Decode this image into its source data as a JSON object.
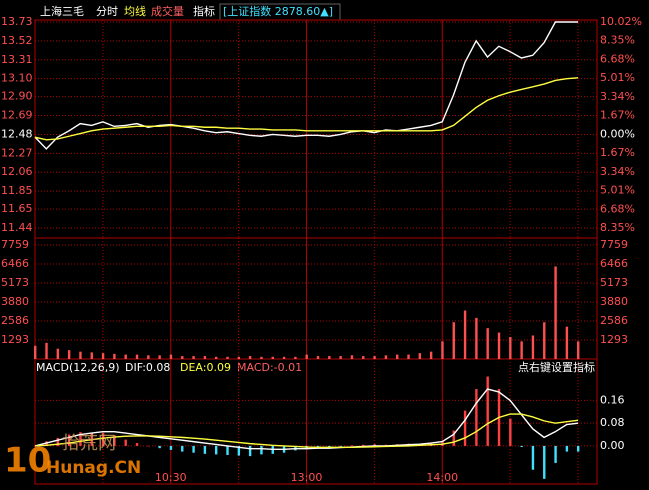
{
  "chart_data": [
    {
      "type": "line",
      "title": "上海三毛",
      "tabs": [
        "成交量",
        "指标"
      ],
      "index_label": "[上证指数 2878.60▲]",
      "ylim": [
        11.44,
        13.73
      ],
      "yticks": [
        13.73,
        13.52,
        13.31,
        {
          "value": 13.1,
          "label": "13.10"
        },
        {
          "value": 12.9,
          "label": "12.90"
        },
        12.69,
        12.48,
        12.27,
        12.06,
        11.85,
        11.65,
        11.44
      ],
      "y2lim": [
        -8.35,
        10.02
      ],
      "y2ticks": [
        {
          "value": 10.02,
          "label": "10.02%"
        },
        {
          "value": 8.35,
          "label": "8.35%"
        },
        {
          "value": 6.68,
          "label": "6.68%"
        },
        {
          "value": 5.01,
          "label": "5.01%"
        },
        {
          "value": 3.34,
          "label": "3.34%"
        },
        {
          "value": 1.67,
          "label": "1.67%"
        },
        {
          "value": 0,
          "label": "0.00%"
        },
        {
          "value": -1.67,
          "label": "1.67%"
        },
        {
          "value": -3.34,
          "label": "3.34%"
        },
        {
          "value": -5.01,
          "label": "5.01%"
        },
        {
          "value": -6.68,
          "label": "6.68%"
        },
        {
          "value": -8.35,
          "label": "8.35%"
        }
      ],
      "grid": true,
      "series": [
        {
          "name": "分时",
          "color": "#ffffff",
          "values": [
            12.45,
            12.32,
            12.45,
            12.52,
            12.6,
            12.58,
            12.62,
            12.57,
            12.58,
            12.6,
            12.56,
            12.58,
            12.59,
            12.57,
            12.55,
            12.52,
            12.5,
            12.51,
            12.49,
            12.47,
            12.46,
            12.48,
            12.47,
            12.46,
            12.47,
            12.47,
            12.46,
            12.48,
            12.51,
            12.52,
            12.5,
            12.53,
            12.52,
            12.54,
            12.56,
            12.58,
            12.62,
            12.92,
            13.28,
            13.52,
            13.34,
            13.46,
            13.4,
            13.33,
            13.36,
            13.5,
            13.73,
            13.73,
            13.73
          ]
        },
        {
          "name": "均线",
          "color": "#ffff40",
          "values": [
            12.45,
            12.42,
            12.43,
            12.46,
            12.49,
            12.52,
            12.54,
            12.55,
            12.56,
            12.57,
            12.57,
            12.57,
            12.58,
            12.57,
            12.57,
            12.56,
            12.56,
            12.55,
            12.55,
            12.54,
            12.54,
            12.53,
            12.53,
            12.53,
            12.52,
            12.52,
            12.52,
            12.52,
            12.52,
            12.52,
            12.52,
            12.52,
            12.52,
            12.52,
            12.52,
            12.52,
            12.53,
            12.58,
            12.68,
            12.78,
            12.86,
            12.91,
            12.95,
            12.98,
            13.01,
            13.04,
            13.08,
            13.1,
            13.11
          ]
        }
      ]
    },
    {
      "type": "bar",
      "ylim": [
        0,
        7759
      ],
      "yticks": [
        7759,
        6466,
        5173,
        3880,
        2586,
        1293
      ],
      "color": "#ff5050",
      "values": [
        900,
        1100,
        700,
        600,
        500,
        450,
        400,
        350,
        300,
        300,
        250,
        250,
        300,
        200,
        200,
        200,
        150,
        150,
        150,
        200,
        150,
        150,
        150,
        150,
        300,
        200,
        200,
        200,
        250,
        200,
        200,
        250,
        300,
        300,
        400,
        500,
        1200,
        2500,
        3300,
        2800,
        2100,
        1800,
        1500,
        1200,
        1600,
        2500,
        6300,
        2200,
        1200
      ]
    },
    {
      "type": "macd",
      "title": "MACD(12,26,9)",
      "readouts": [
        "DIF:0.08",
        "DEA:0.09",
        "MACD:-0.01"
      ],
      "hint": "点右键设置指标",
      "categories": [
        null,
        null,
        null,
        null,
        null,
        null,
        null,
        null,
        null,
        null,
        null,
        null,
        "10:30",
        null,
        null,
        null,
        null,
        null,
        null,
        null,
        null,
        null,
        null,
        null,
        "13:00",
        null,
        null,
        null,
        null,
        null,
        null,
        null,
        null,
        null,
        null,
        null,
        "14:00",
        null,
        null,
        null,
        null,
        null,
        null,
        null,
        null,
        null,
        null,
        null,
        null
      ],
      "ylim": [
        -0.12,
        0.26
      ],
      "yticks": [
        0.16,
        0.08,
        {
          "value": 0,
          "label": "0.00"
        }
      ],
      "series": [
        {
          "type": "bar",
          "color": "#ff4040",
          "negative_color": "#40e0ff",
          "values": [
            0,
            0.016,
            0.028,
            0.04,
            0.048,
            0.046,
            0.046,
            0.038,
            0.022,
            0.01,
            0,
            -0.008,
            -0.014,
            -0.02,
            -0.024,
            -0.028,
            -0.03,
            -0.032,
            -0.034,
            -0.036,
            -0.03,
            -0.028,
            -0.024,
            -0.016,
            -0.012,
            -0.006,
            -0.006,
            -0.002,
            0.002,
            0.004,
            0.006,
            0.004,
            0.006,
            0.008,
            0.008,
            0.012,
            0.018,
            0.054,
            0.124,
            0.2,
            0.244,
            0.2,
            0.096,
            -0.004,
            -0.084,
            -0.116,
            -0.06,
            -0.02,
            -0.02
          ]
        },
        {
          "type": "line",
          "color": "#ffffff",
          "values": [
            0,
            0.01,
            0.02,
            0.03,
            0.04,
            0.045,
            0.05,
            0.05,
            0.045,
            0.04,
            0.035,
            0.03,
            0.025,
            0.02,
            0.015,
            0.01,
            0.005,
            0,
            -0.005,
            -0.01,
            -0.01,
            -0.012,
            -0.012,
            -0.01,
            -0.01,
            -0.008,
            -0.008,
            -0.006,
            -0.004,
            -0.002,
            0,
            0,
            0.002,
            0.004,
            0.006,
            0.01,
            0.015,
            0.04,
            0.09,
            0.15,
            0.2,
            0.19,
            0.16,
            0.11,
            0.06,
            0.03,
            0.05,
            0.075,
            0.08
          ]
        },
        {
          "type": "line",
          "color": "#ffff40",
          "values": [
            0,
            0.002,
            0.006,
            0.01,
            0.016,
            0.022,
            0.027,
            0.031,
            0.034,
            0.035,
            0.035,
            0.034,
            0.032,
            0.03,
            0.027,
            0.024,
            0.02,
            0.016,
            0.012,
            0.008,
            0.005,
            0.002,
            0,
            -0.002,
            -0.004,
            -0.005,
            -0.005,
            -0.005,
            -0.005,
            -0.004,
            -0.003,
            -0.002,
            -0.001,
            0,
            0.002,
            0.004,
            0.006,
            0.013,
            0.028,
            0.05,
            0.078,
            0.1,
            0.112,
            0.112,
            0.102,
            0.088,
            0.08,
            0.085,
            0.09
          ]
        }
      ]
    }
  ],
  "watermark": {
    "number": "10",
    "name": "拾荒网",
    "site": "Hunag.CN"
  }
}
